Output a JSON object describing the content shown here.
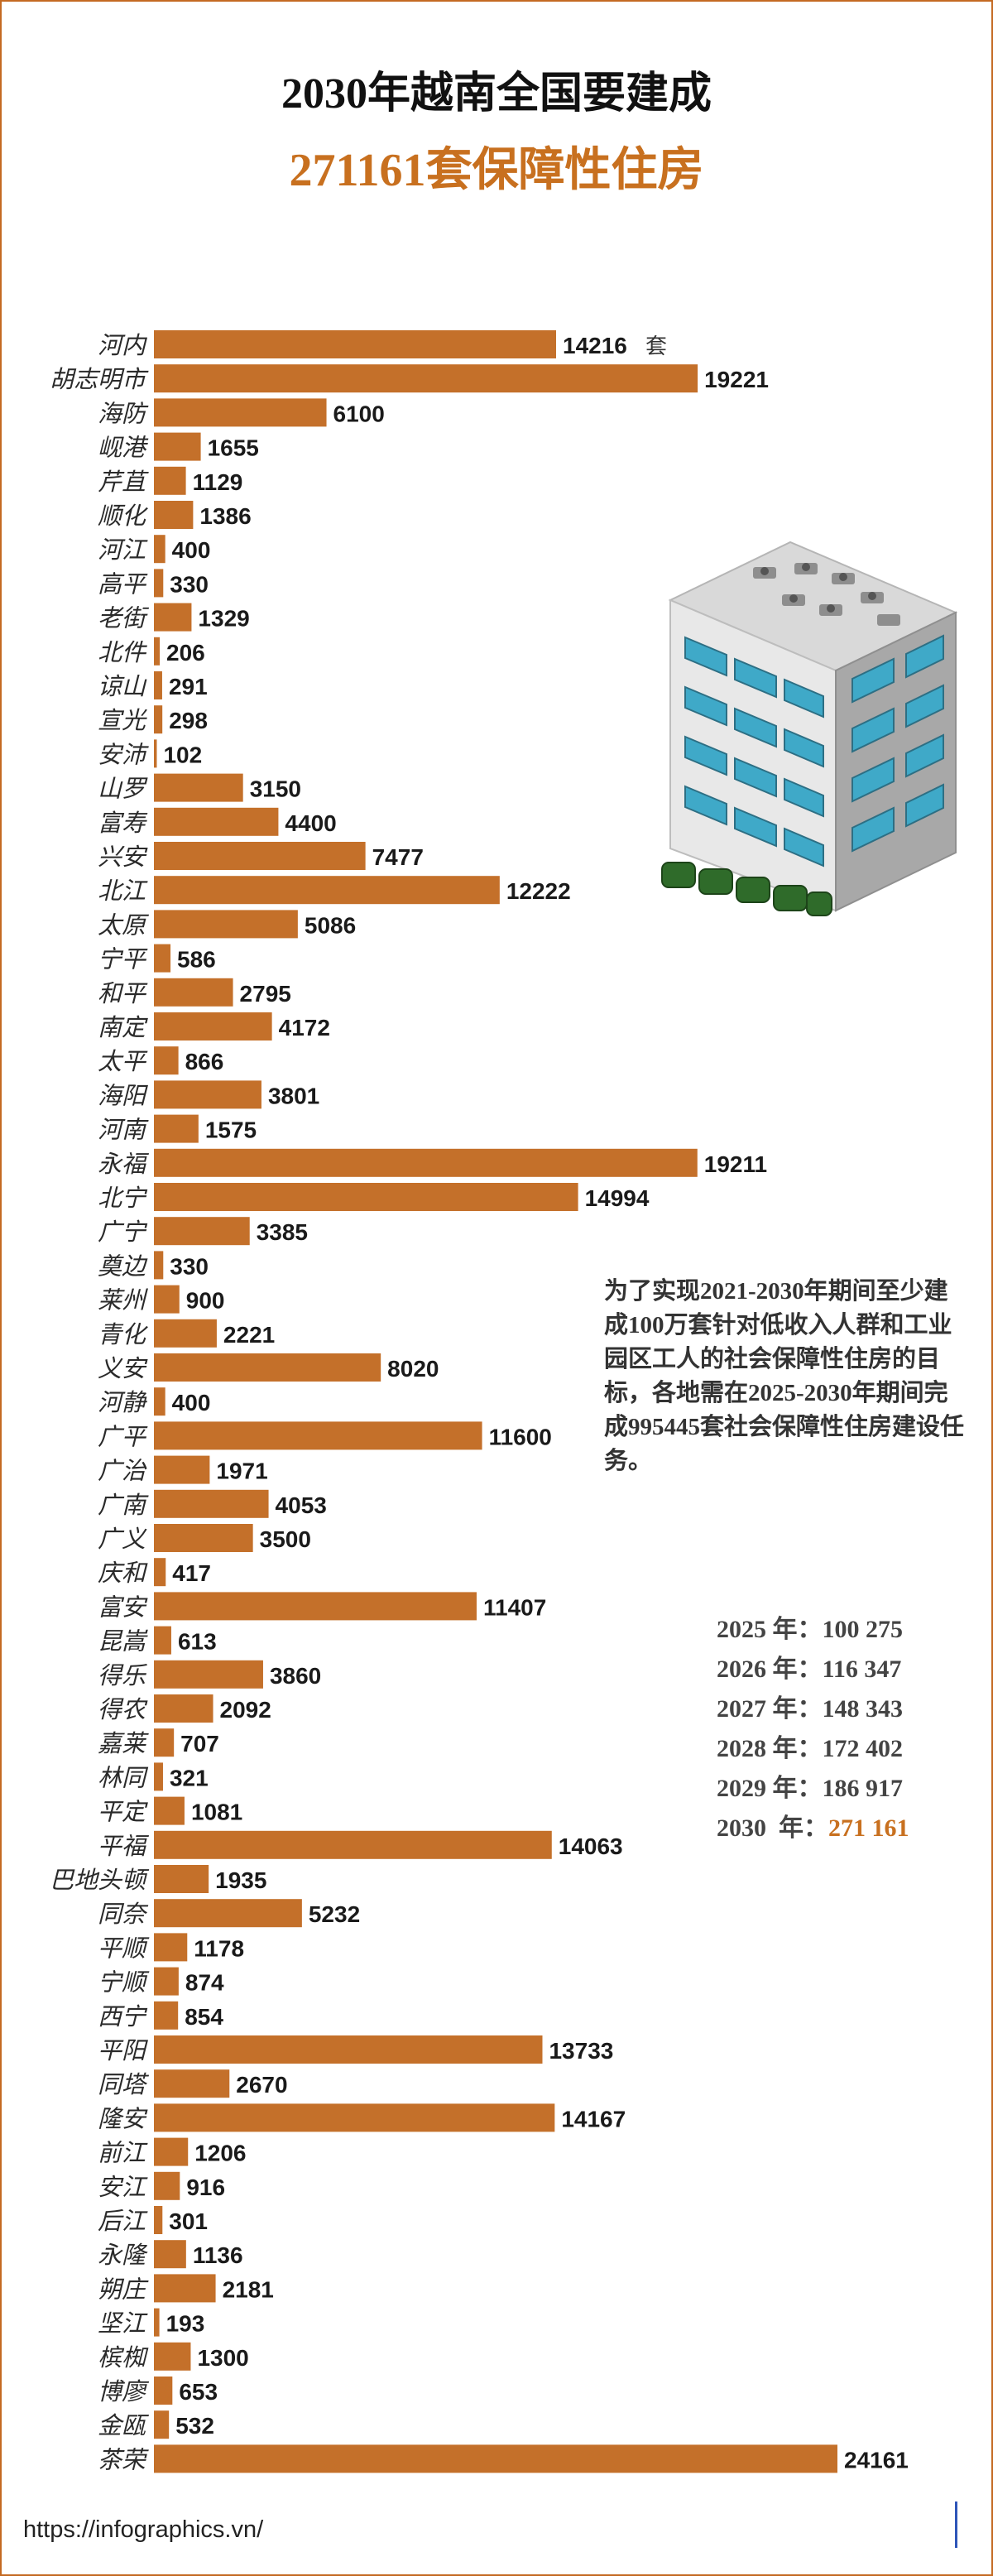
{
  "header": {
    "title": "2030年越南全国要建成",
    "subtitle": "271161套保障性住房"
  },
  "colors": {
    "bar": "#c4702a",
    "accent": "#c8701f",
    "frame": "#c46a22"
  },
  "chart_data": {
    "type": "bar",
    "orientation": "horizontal",
    "unit_label": "套",
    "categories": [
      "河内",
      "胡志明市",
      "海防",
      "岘港",
      "芹苴",
      "顺化",
      "河江",
      "高平",
      "老街",
      "北件",
      "谅山",
      "宣光",
      "安沛",
      "山罗",
      "富寿",
      "兴安",
      "北江",
      "太原",
      "宁平",
      "和平",
      "南定",
      "太平",
      "海阳",
      "河南",
      "永福",
      "北宁",
      "广宁",
      "奠边",
      "莱州",
      "青化",
      "义安",
      "河静",
      "广平",
      "广治",
      "广南",
      "广义",
      "庆和",
      "富安",
      "昆嵩",
      "得乐",
      "得农",
      "嘉莱",
      "林同",
      "平定",
      "平福",
      "巴地头顿",
      "同奈",
      "平顺",
      "宁顺",
      "西宁",
      "平阳",
      "同塔",
      "隆安",
      "前江",
      "安江",
      "后江",
      "永隆",
      "朔庄",
      "坚江",
      "槟椥",
      "博廖",
      "金瓯",
      "茶荣"
    ],
    "values": [
      14216,
      19221,
      6100,
      1655,
      1129,
      1386,
      400,
      330,
      1329,
      206,
      291,
      298,
      102,
      3150,
      4400,
      7477,
      12222,
      5086,
      586,
      2795,
      4172,
      866,
      3801,
      1575,
      19211,
      14994,
      3385,
      330,
      900,
      2221,
      8020,
      400,
      11600,
      1971,
      4053,
      3500,
      417,
      11407,
      613,
      3860,
      2092,
      707,
      321,
      1081,
      14063,
      1935,
      5232,
      1178,
      874,
      854,
      13733,
      2670,
      14167,
      1206,
      916,
      301,
      1136,
      2181,
      193,
      1300,
      653,
      532,
      24161
    ]
  },
  "note": {
    "text": "为了实现2021-2030年期间至少建成100万套针对低收入人群和工业园区工人的社会保障性住房的目标，各地需在2025-2030年期间完成995445套社会保障性住房建设任务。"
  },
  "yearly": [
    {
      "label": "2025 年：100 275",
      "highlight": false
    },
    {
      "label": "2026 年：116 347",
      "highlight": false
    },
    {
      "label": "2027 年：148 343",
      "highlight": false
    },
    {
      "label": "2028 年：172 402",
      "highlight": false
    },
    {
      "label": "2029 年：186 917",
      "highlight": false
    },
    {
      "label": "2030  年：",
      "value": "271 161",
      "highlight": true
    }
  ],
  "footer": {
    "url": "https://infographics.vn/"
  }
}
